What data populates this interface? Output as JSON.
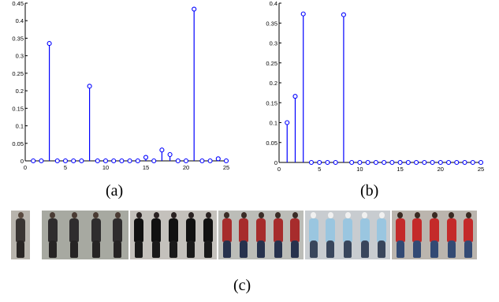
{
  "chart_data": [
    {
      "type": "stem",
      "title": "",
      "xlabel": "",
      "ylabel": "",
      "xlim": [
        0,
        25
      ],
      "ylim": [
        0,
        0.45
      ],
      "xticks": [
        0,
        5,
        10,
        15,
        20,
        25
      ],
      "yticks": [
        0,
        0.05,
        0.1,
        0.15,
        0.2,
        0.25,
        0.3,
        0.35,
        0.4,
        0.45
      ],
      "ytick_labels": [
        "0",
        "0.05",
        "0.1",
        "0.15",
        "0.2",
        "0.25",
        "0.3",
        "0.35",
        "0.4",
        "0.45"
      ],
      "color": "#0000ff",
      "x": [
        1,
        2,
        3,
        4,
        5,
        6,
        7,
        8,
        9,
        10,
        11,
        12,
        13,
        14,
        15,
        16,
        17,
        18,
        19,
        20,
        21,
        22,
        23,
        24,
        25
      ],
      "y": [
        0,
        0,
        0.335,
        0,
        0,
        0,
        0,
        0.213,
        0,
        0,
        0,
        0,
        0,
        0,
        0.01,
        0,
        0.031,
        0.018,
        0,
        0,
        0.433,
        0,
        0,
        0.006,
        0
      ]
    },
    {
      "type": "stem",
      "title": "",
      "xlabel": "",
      "ylabel": "",
      "xlim": [
        0,
        25
      ],
      "ylim": [
        0,
        0.4
      ],
      "xticks": [
        0,
        5,
        10,
        15,
        20,
        25
      ],
      "yticks": [
        0,
        0.05,
        0.1,
        0.15,
        0.2,
        0.25,
        0.3,
        0.35,
        0.4
      ],
      "ytick_labels": [
        "0",
        "0.05",
        "0.1",
        "0.15",
        "0.2",
        "0.25",
        "0.3",
        "0.35",
        "0.4"
      ],
      "color": "#0000ff",
      "x": [
        1,
        2,
        3,
        4,
        5,
        6,
        7,
        8,
        9,
        10,
        11,
        12,
        13,
        14,
        15,
        16,
        17,
        18,
        19,
        20,
        21,
        22,
        23,
        24,
        25
      ],
      "y": [
        0.1,
        0.166,
        0.373,
        0,
        0,
        0,
        0,
        0.371,
        0,
        0,
        0,
        0,
        0,
        0,
        0,
        0,
        0,
        0,
        0,
        0,
        0,
        0,
        0,
        0,
        0
      ]
    }
  ],
  "labels": {
    "a": "(a)",
    "b": "(b)",
    "c": "(c)"
  },
  "image_strip": {
    "query_clothing": "dark coat",
    "groups": [
      {
        "count": 4,
        "clothing": "dark suit"
      },
      {
        "count": 5,
        "clothing": "white shirt, black coat"
      },
      {
        "count": 5,
        "clothing": "red and navy jacket"
      },
      {
        "count": 5,
        "clothing": "light blue jacket, white hood"
      },
      {
        "count": 5,
        "clothing": "red top, jeans"
      }
    ]
  }
}
